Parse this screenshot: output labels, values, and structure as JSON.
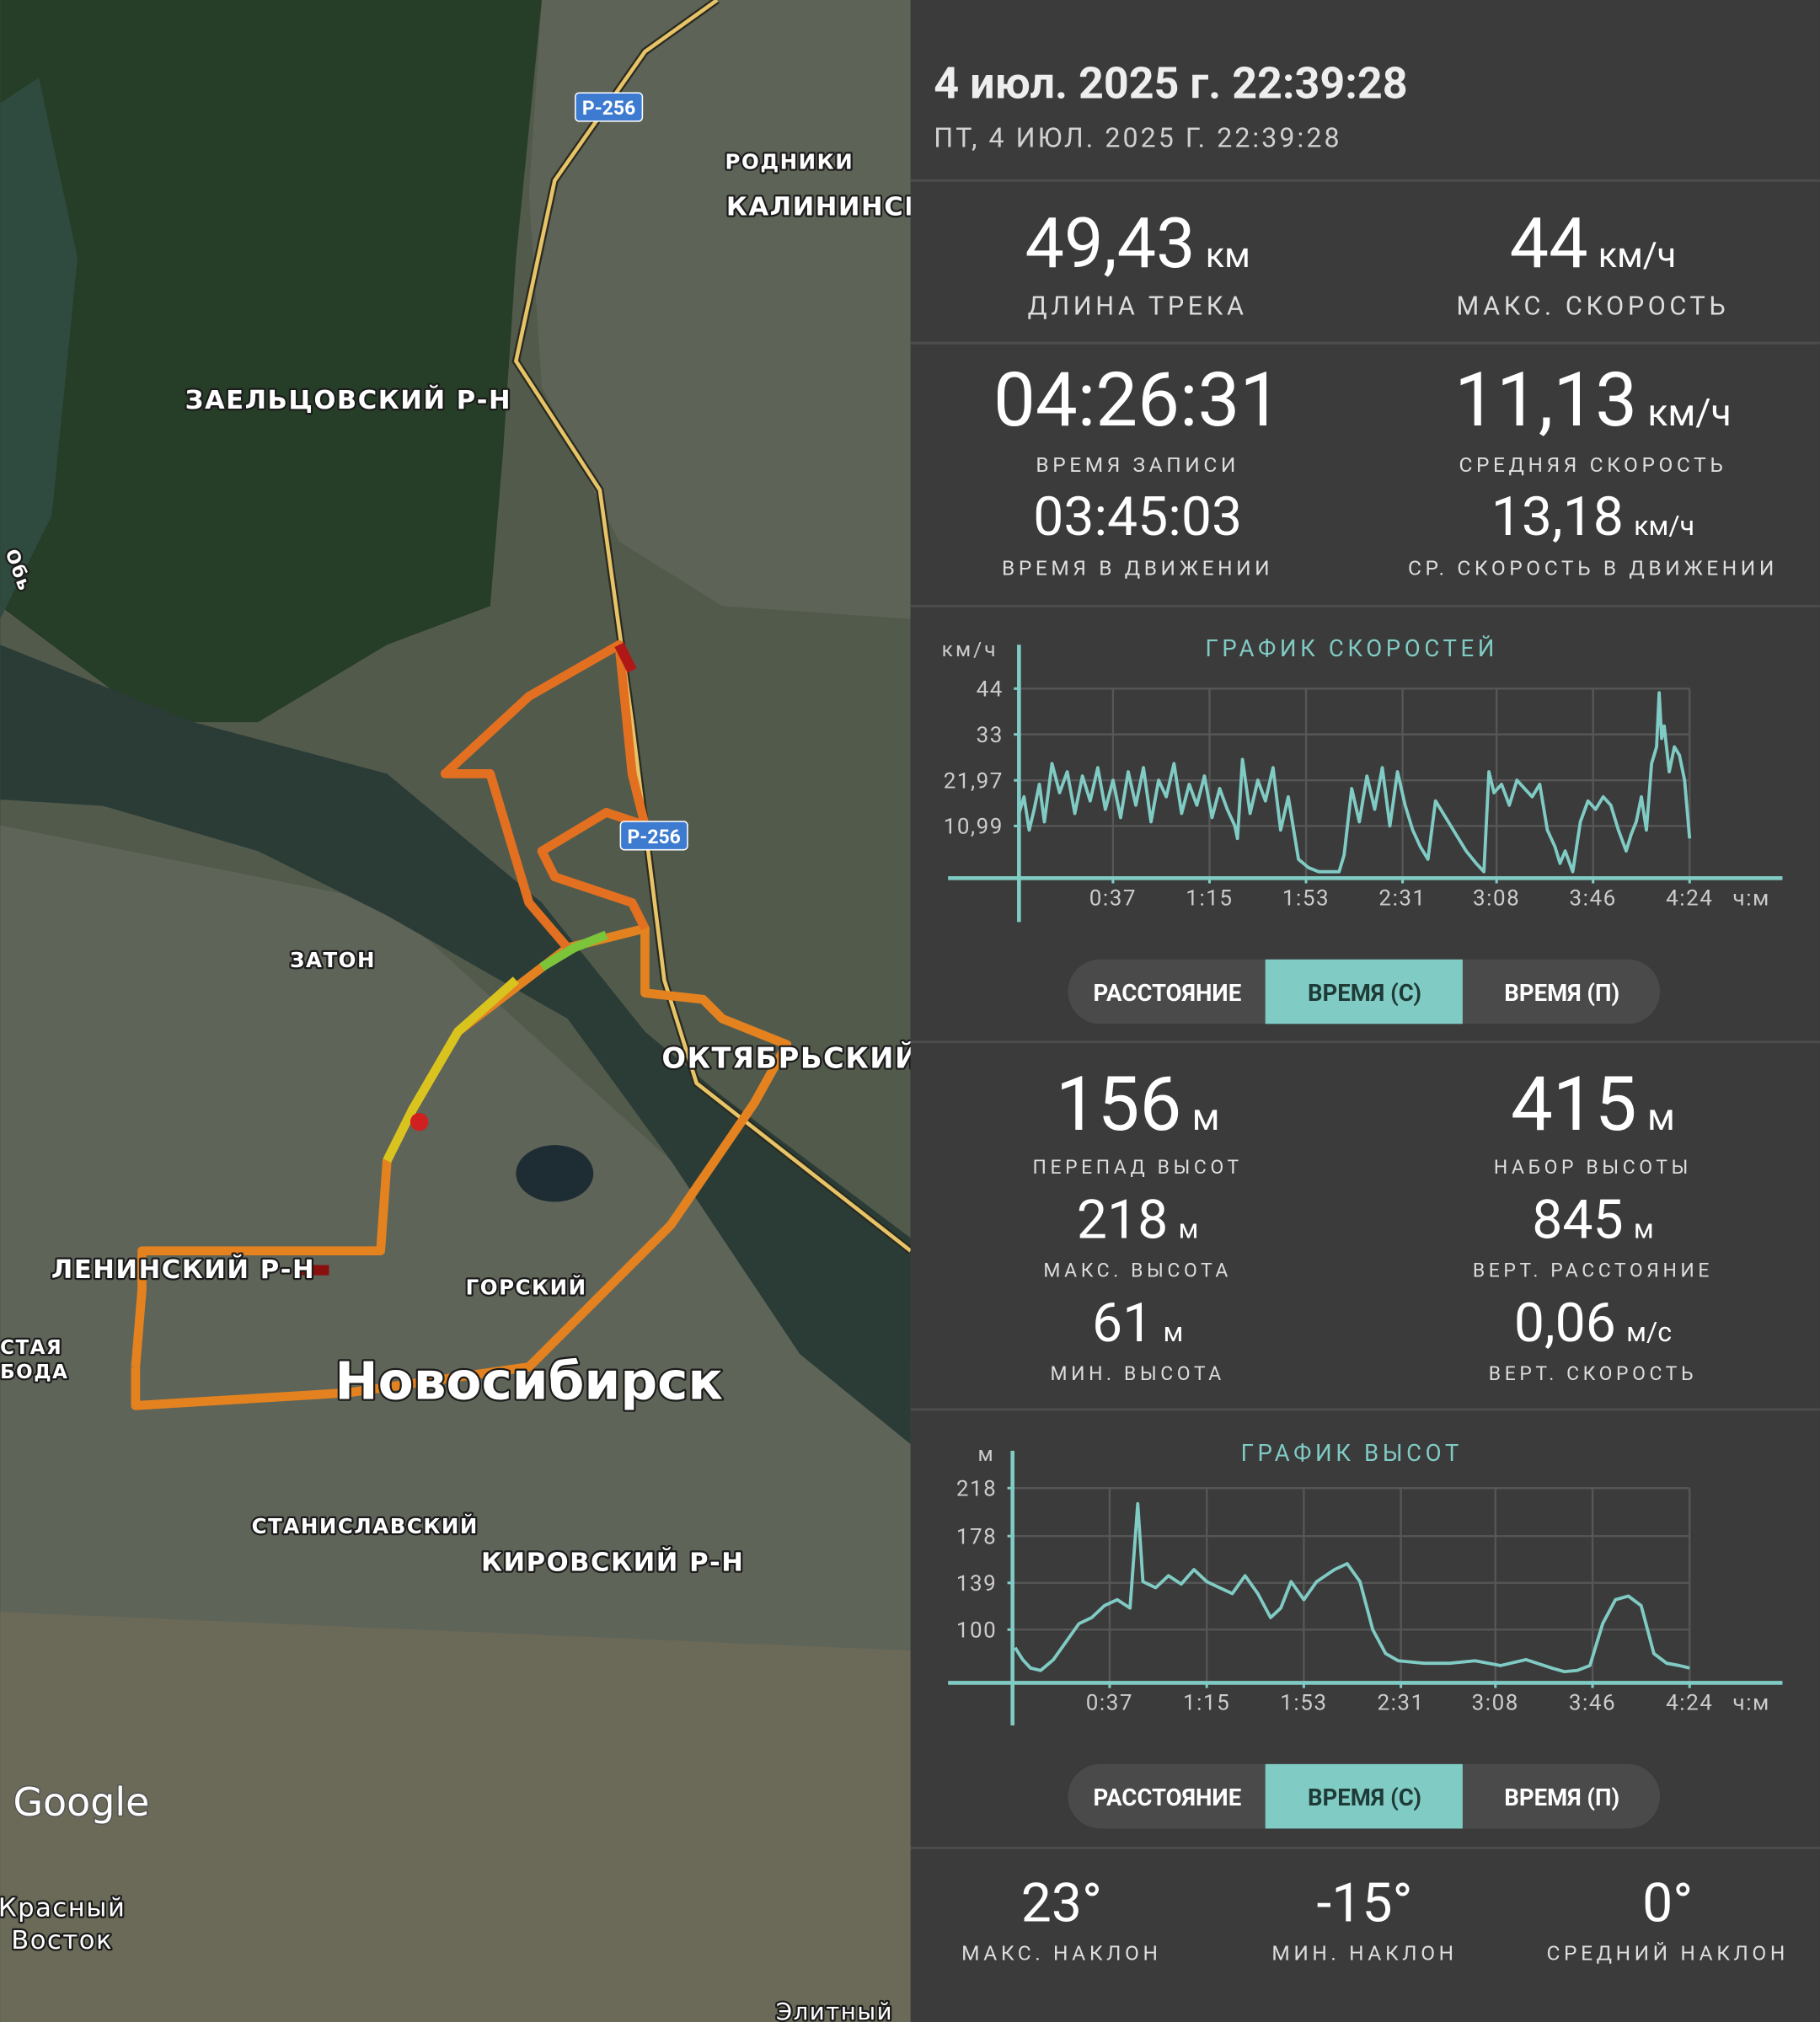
{
  "header": {
    "title": "4 июл. 2025 г. 22:39:28",
    "subtitle": "ПТ, 4 ИЮЛ. 2025 Г. 22:39:28"
  },
  "map": {
    "labels": [
      "РОДНИКИ",
      "КАЛИНИНСК",
      "ЗАЕЛЬЦОВСКИЙ Р-Н",
      "Обь",
      "ЗАТОН",
      "ОКТЯБРЬСКИЙ Р",
      "ЛЕНИНСКИЙ Р-Н",
      "ГОРСКИЙ",
      "СТАЯ",
      "БОДА",
      "Новосибирск",
      "СТАНИСЛАВСКИЙ",
      "КИРОВСКИЙ Р-Н",
      "Красный",
      "Восток",
      "Элитный"
    ],
    "road_badges": [
      "Р-256",
      "Р-256"
    ],
    "attribution": "Google"
  },
  "track_stats": [
    {
      "value": "49,43",
      "unit": "км",
      "label": "ДЛИНА ТРЕКА"
    },
    {
      "value": "44",
      "unit": "км/ч",
      "label": "МАКС. СКОРОСТЬ"
    },
    {
      "value": "04:26:31",
      "label": "ВРЕМЯ ЗАПИСИ"
    },
    {
      "value": "11,13",
      "unit": "км/ч",
      "label": "СРЕДНЯЯ СКОРОСТЬ"
    },
    {
      "value": "03:45:03",
      "label": "ВРЕМЯ В ДВИЖЕНИИ"
    },
    {
      "value": "13,18",
      "unit": "км/ч",
      "label": "СР. СКОРОСТЬ В ДВИЖЕНИИ"
    }
  ],
  "speed_chart": {
    "type": "line",
    "title": "ГРАФИК СКОРОСТЕЙ",
    "y_unit": "км/ч",
    "x_unit": "ч:м",
    "color": "#80cbc4",
    "x": [
      0,
      2,
      4,
      6,
      8,
      10,
      13,
      16,
      19,
      22,
      25,
      28,
      31,
      34,
      37,
      40,
      43,
      46,
      49,
      52,
      55,
      58,
      61,
      64,
      67,
      70,
      73,
      76,
      79,
      82,
      85,
      86,
      88,
      91,
      94,
      97,
      100,
      103,
      106,
      110,
      114,
      118,
      122,
      126,
      128,
      131,
      134,
      137,
      140,
      143,
      146,
      149,
      152,
      155,
      158,
      161,
      164,
      168,
      172,
      176,
      180,
      183,
      185,
      187,
      190,
      193,
      196,
      199,
      202,
      205,
      208,
      211,
      213,
      215,
      218,
      221,
      224,
      227,
      230,
      233,
      236,
      239,
      241,
      243,
      245,
      247,
      249,
      251,
      252,
      253,
      254,
      256,
      258,
      260,
      262,
      264
    ],
    "values": [
      14,
      18,
      10,
      15,
      21,
      12,
      26,
      19,
      24,
      14,
      23,
      17,
      25,
      15,
      22,
      13,
      24,
      16,
      25,
      12,
      22,
      18,
      26,
      14,
      21,
      16,
      23,
      13,
      20,
      15,
      11,
      8,
      27,
      14,
      22,
      17,
      25,
      10,
      18,
      3,
      1,
      0,
      0,
      0,
      4,
      20,
      12,
      23,
      15,
      25,
      11,
      24,
      16,
      10,
      6,
      3,
      17,
      13,
      9,
      5,
      2,
      0,
      24,
      19,
      21,
      16,
      22,
      20,
      18,
      21,
      10,
      6,
      2,
      5,
      0,
      12,
      17,
      15,
      18,
      16,
      10,
      5,
      9,
      12,
      18,
      10,
      26,
      30,
      43,
      32,
      35,
      24,
      30,
      28,
      22,
      8
    ],
    "xlim": [
      0,
      264
    ],
    "ylim": [
      0,
      44
    ],
    "xticks": [
      {
        "value": 37,
        "label": "0:37"
      },
      {
        "value": 75,
        "label": "1:15"
      },
      {
        "value": 113,
        "label": "1:53"
      },
      {
        "value": 151,
        "label": "2:31"
      },
      {
        "value": 188,
        "label": "3:08"
      },
      {
        "value": 226,
        "label": "3:46"
      },
      {
        "value": 264,
        "label": "4:24"
      }
    ],
    "yticks": [
      {
        "value": 10.99,
        "label": "10,99"
      },
      {
        "value": 21.97,
        "label": "21,97"
      },
      33,
      44
    ],
    "grid": true,
    "modes": [
      "РАССТОЯНИЕ",
      "ВРЕМЯ (С)",
      "ВРЕМЯ (П)"
    ],
    "active_mode": 1
  },
  "elevation_stats": [
    {
      "value": "156",
      "unit": "м",
      "label": "ПЕРЕПАД ВЫСОТ"
    },
    {
      "value": "415",
      "unit": "м",
      "label": "НАБОР ВЫСОТЫ"
    },
    {
      "value": "218",
      "unit": "м",
      "label": "МАКС. ВЫСОТА"
    },
    {
      "value": "845",
      "unit": "м",
      "label": "ВЕРТ. РАССТОЯНИЕ"
    },
    {
      "value": "61",
      "unit": "м",
      "label": "МИН. ВЫСОТА"
    },
    {
      "value": "0,06",
      "unit": "м/с",
      "label": "ВЕРТ. СКОРОСТЬ"
    }
  ],
  "elevation_chart": {
    "type": "line",
    "title": "ГРАФИК ВЫСОТ",
    "y_unit": "м",
    "x_unit": "ч:м",
    "color": "#80cbc4",
    "x": [
      0,
      3,
      6,
      10,
      15,
      20,
      25,
      30,
      35,
      40,
      45,
      48,
      50,
      55,
      60,
      65,
      70,
      75,
      80,
      85,
      90,
      95,
      100,
      104,
      108,
      113,
      118,
      125,
      130,
      135,
      140,
      145,
      150,
      160,
      170,
      180,
      190,
      200,
      210,
      215,
      220,
      225,
      230,
      235,
      240,
      245,
      250,
      255,
      260,
      264
    ],
    "values": [
      85,
      75,
      68,
      66,
      75,
      90,
      105,
      110,
      120,
      125,
      118,
      205,
      140,
      135,
      145,
      138,
      150,
      140,
      135,
      130,
      145,
      130,
      110,
      118,
      140,
      125,
      140,
      150,
      155,
      140,
      100,
      80,
      74,
      72,
      72,
      74,
      70,
      75,
      68,
      65,
      66,
      70,
      105,
      125,
      128,
      120,
      80,
      72,
      70,
      68
    ],
    "xlim": [
      0,
      264
    ],
    "ylim": [
      61,
      218
    ],
    "xticks": [
      {
        "value": 37,
        "label": "0:37"
      },
      {
        "value": 75,
        "label": "1:15"
      },
      {
        "value": 113,
        "label": "1:53"
      },
      {
        "value": 151,
        "label": "2:31"
      },
      {
        "value": 188,
        "label": "3:08"
      },
      {
        "value": 226,
        "label": "3:46"
      },
      {
        "value": 264,
        "label": "4:24"
      }
    ],
    "yticks": [
      100,
      139,
      178,
      218
    ],
    "grid": true,
    "modes": [
      "РАССТОЯНИЕ",
      "ВРЕМЯ (С)",
      "ВРЕМЯ (П)"
    ],
    "active_mode": 1
  },
  "slope_stats": [
    {
      "value": "23°",
      "label": "МАКС. НАКЛОН"
    },
    {
      "value": "-15°",
      "label": "МИН. НАКЛОН"
    },
    {
      "value": "0°",
      "label": "СРЕДНИЙ НАКЛОН"
    }
  ]
}
